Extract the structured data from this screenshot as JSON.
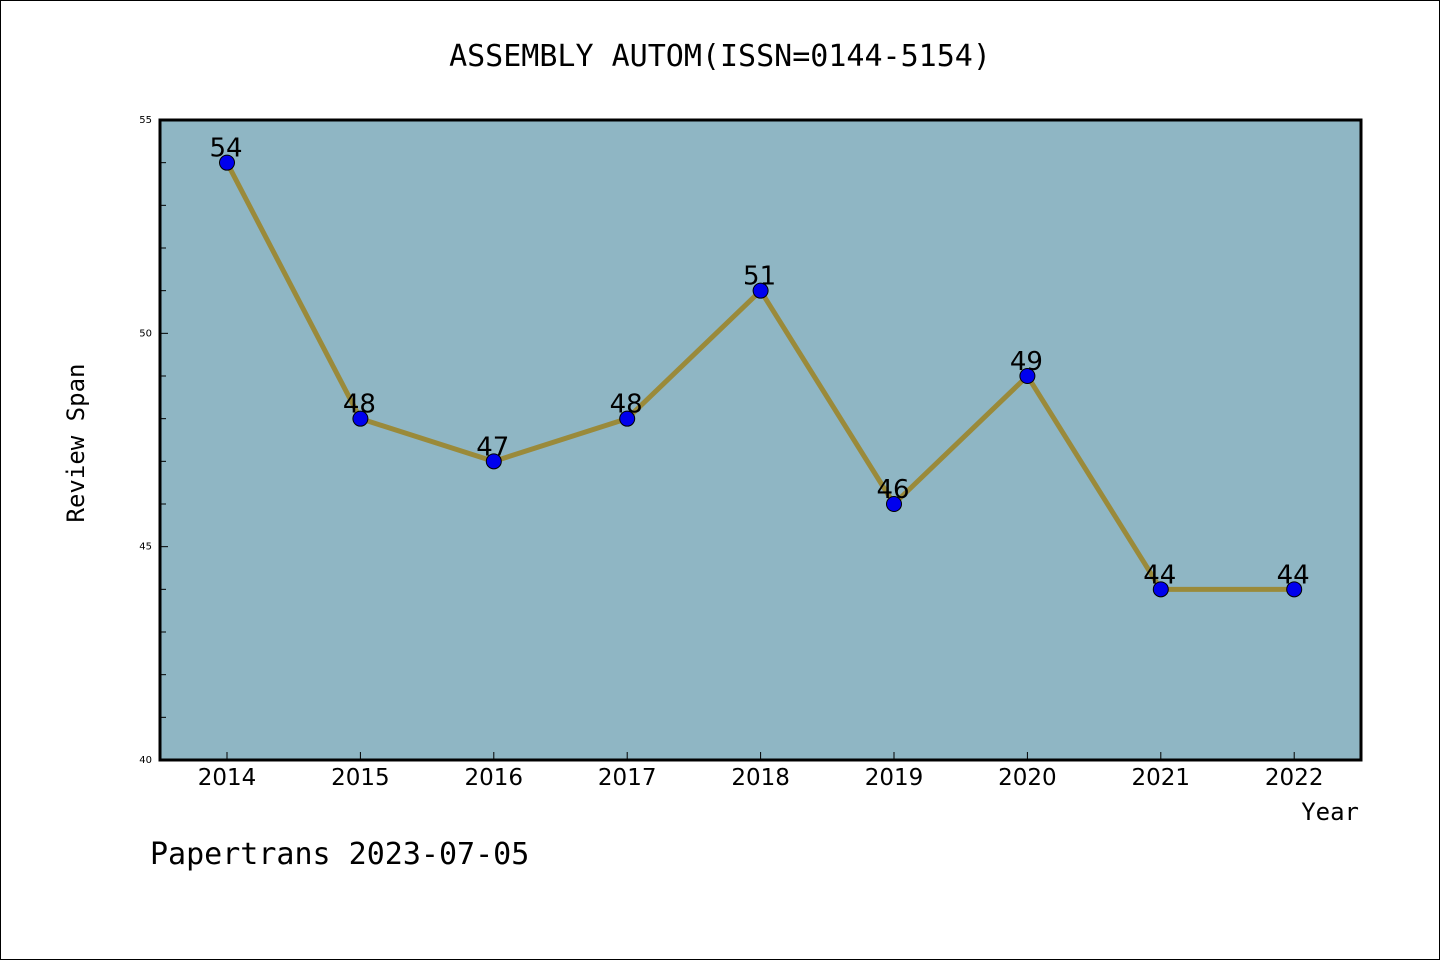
{
  "chart_data": {
    "type": "line",
    "title": "ASSEMBLY AUTOM(ISSN=0144-5154)",
    "xlabel": "Year",
    "ylabel": "Review Span",
    "categories": [
      "2014",
      "2015",
      "2016",
      "2017",
      "2018",
      "2019",
      "2020",
      "2021",
      "2022"
    ],
    "values": [
      54,
      48,
      47,
      48,
      51,
      46,
      49,
      44,
      44
    ],
    "data_labels": [
      "54",
      "48",
      "47",
      "48",
      "51",
      "46",
      "49",
      "44",
      "44"
    ],
    "ylim": [
      40,
      55
    ],
    "yticks": [
      "40",
      "45",
      "50",
      "55"
    ],
    "grid": false,
    "colors": {
      "plot_background": "#8fb6c4",
      "line": "#9a8a3a",
      "marker": "#0000ee"
    }
  },
  "footer": "Papertrans 2023-07-05"
}
